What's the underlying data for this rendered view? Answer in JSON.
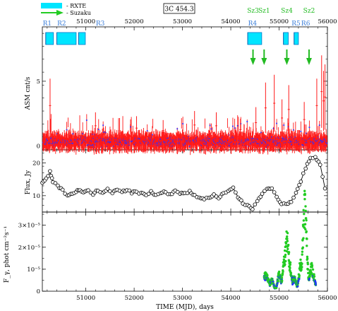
{
  "legend": {
    "items": [
      {
        "label": "- RXTE",
        "color": "#00e5ff"
      },
      {
        "label": "- Suzaku",
        "color": "#22cc22"
      }
    ]
  },
  "source_label": "3C 454.3",
  "xaxis": {
    "label": "TIME (MJD), days",
    "range": [
      50100,
      56000
    ],
    "ticks": [
      51000,
      52000,
      53000,
      54000,
      55000,
      56000
    ],
    "tick_labels": [
      "51000",
      "52000",
      "53000",
      "54000",
      "55000",
      "56000"
    ]
  },
  "rxte_intervals": {
    "labels": [
      "R1",
      "R2",
      "R3",
      "R4",
      "R5",
      "R6"
    ],
    "label_x": [
      50200,
      50500,
      51300,
      54450,
      55350,
      55550
    ],
    "color": "#3a7dd8",
    "blocks": [
      [
        50170,
        50330
      ],
      [
        50400,
        50800
      ],
      [
        50850,
        50990
      ],
      [
        54350,
        54640
      ],
      [
        55090,
        55190
      ],
      [
        55310,
        55400
      ]
    ]
  },
  "suzaku_obs": {
    "labels": [
      "Sz3",
      "Sz1",
      "Sz4",
      "Sz2"
    ],
    "x": [
      54460,
      54690,
      55160,
      55620
    ],
    "color": "#22bb22"
  },
  "chart_data": [
    {
      "type": "scatter",
      "panel": "asm",
      "ylabel": "ASM cnt/s",
      "ylim": [
        -0.3,
        9.2
      ],
      "yticks": [
        0,
        5
      ],
      "series": [
        {
          "color": "#ff1a1a",
          "style": "error-bars"
        },
        {
          "color": "#3030ff",
          "style": "points"
        }
      ],
      "spikes": [
        {
          "x": 50260,
          "y": 5.2
        },
        {
          "x": 51200,
          "y": 2.6
        },
        {
          "x": 52050,
          "y": 2.3
        },
        {
          "x": 52600,
          "y": 2.0
        },
        {
          "x": 53250,
          "y": 2.7
        },
        {
          "x": 53700,
          "y": 2.6
        },
        {
          "x": 54200,
          "y": 2.1
        },
        {
          "x": 54520,
          "y": 3.0
        },
        {
          "x": 54720,
          "y": 4.9
        },
        {
          "x": 54900,
          "y": 5.5
        },
        {
          "x": 55060,
          "y": 3.6
        },
        {
          "x": 55200,
          "y": 4.7
        },
        {
          "x": 55520,
          "y": 3.4
        },
        {
          "x": 55780,
          "y": 5.2
        },
        {
          "x": 55880,
          "y": 7.0
        },
        {
          "x": 55920,
          "y": 5.8
        },
        {
          "x": 55950,
          "y": 6.3
        }
      ]
    },
    {
      "type": "line",
      "panel": "flux",
      "ylabel": "Flux, Jy",
      "ylim": [
        5,
        24
      ],
      "yticks": [
        10,
        20
      ],
      "marker": "open-circle",
      "x": [
        50100,
        50180,
        50260,
        50320,
        50420,
        50520,
        50620,
        50720,
        50800,
        50880,
        50950,
        51050,
        51150,
        51250,
        51350,
        51450,
        51550,
        51650,
        51750,
        51850,
        51950,
        52050,
        52150,
        52250,
        52350,
        52450,
        52550,
        52650,
        52750,
        52850,
        52950,
        53050,
        53150,
        53250,
        53350,
        53450,
        53550,
        53650,
        53750,
        53850,
        53950,
        54050,
        54150,
        54250,
        54350,
        54450,
        54550,
        54650,
        54750,
        54850,
        54950,
        55050,
        55150,
        55250,
        55350,
        55450,
        55550,
        55650,
        55750,
        55850,
        55950
      ],
      "y": [
        13.6,
        15.2,
        17.2,
        14.0,
        13.1,
        11.5,
        10.4,
        10.6,
        11.2,
        12.0,
        11.0,
        11.4,
        10.6,
        11.6,
        11.1,
        12.2,
        10.9,
        12.1,
        11.3,
        11.8,
        10.9,
        11.2,
        10.7,
        10.3,
        11.4,
        10.1,
        10.7,
        11.2,
        10.4,
        11.3,
        10.9,
        10.5,
        11.2,
        10.2,
        9.5,
        8.7,
        9.6,
        10.1,
        9.3,
        10.6,
        11.3,
        12.3,
        9.6,
        7.8,
        6.8,
        6.1,
        8.4,
        10.8,
        12.4,
        11.9,
        9.8,
        7.6,
        7.2,
        8.4,
        10.6,
        14.4,
        18.6,
        21.2,
        21.8,
        19.6,
        12.2
      ]
    },
    {
      "type": "scatter",
      "panel": "gamma",
      "ylabel": "F_γ, phot cm⁻²s⁻¹",
      "ylim": [
        0,
        3.6e-05
      ],
      "yticks": [
        0,
        1e-05,
        2e-05,
        3e-05
      ],
      "ytick_labels": [
        "0",
        "10⁻⁵",
        "2×10⁻⁵",
        "3×10⁻⁵"
      ],
      "series": [
        {
          "color": "#22cc22",
          "style": "points"
        },
        {
          "color": "#2030ff",
          "style": "points"
        }
      ],
      "x_range": [
        54690,
        55760
      ],
      "peaks": [
        {
          "x": 54700,
          "y": 5.5e-06
        },
        {
          "x": 54760,
          "y": 4.5e-06
        },
        {
          "x": 54850,
          "y": 3.5e-06
        },
        {
          "x": 55000,
          "y": 6e-06
        },
        {
          "x": 55100,
          "y": 1.05e-05
        },
        {
          "x": 55165,
          "y": 2.05e-05
        },
        {
          "x": 55230,
          "y": 8.5e-06
        },
        {
          "x": 55320,
          "y": 4.5e-06
        },
        {
          "x": 55440,
          "y": 1.05e-05
        },
        {
          "x": 55520,
          "y": 2.95e-05
        },
        {
          "x": 55560,
          "y": 1.7e-05
        },
        {
          "x": 55660,
          "y": 9.5e-06
        },
        {
          "x": 55720,
          "y": 4.5e-06
        }
      ]
    }
  ]
}
